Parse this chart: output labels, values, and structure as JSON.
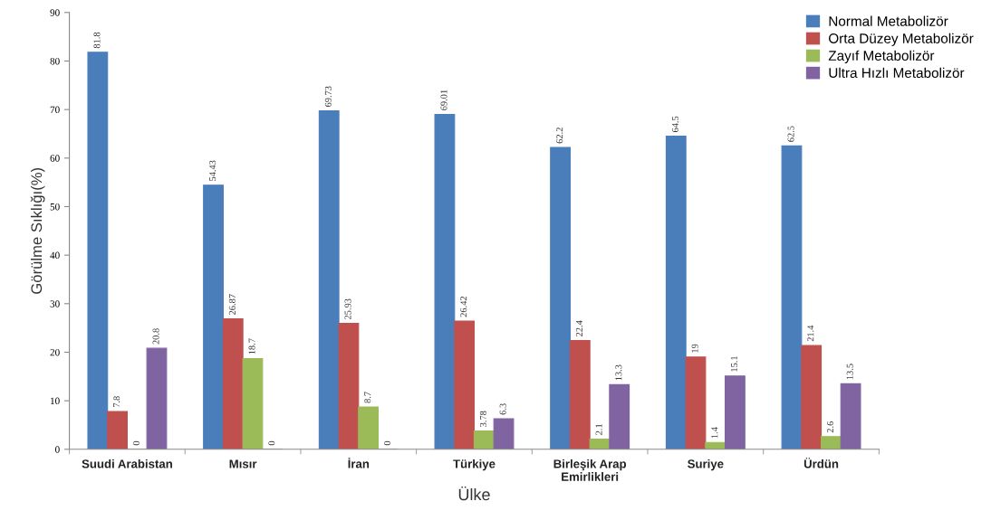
{
  "chart_data": {
    "type": "bar",
    "xlabel": "Ülke",
    "ylabel": "Görülme Sıklığı(%)",
    "categories": [
      "Suudi Arabistan",
      "Mısır",
      "İran",
      "Türkiye",
      "Birleşik Arap\nEmirlikleri",
      "Suriye",
      "Ürdün"
    ],
    "series": [
      {
        "name": "Normal Metabolizör",
        "color": "#4a7ebb",
        "values": [
          81.8,
          54.43,
          69.73,
          69.01,
          62.2,
          64.5,
          62.5
        ]
      },
      {
        "name": "Orta Düzey Metabolizör",
        "color": "#c0504d",
        "values": [
          7.8,
          26.87,
          25.93,
          26.42,
          22.4,
          19,
          21.4
        ]
      },
      {
        "name": "Zayıf Metabolizör",
        "color": "#9bbb59",
        "values": [
          0,
          18.7,
          8.7,
          3.78,
          2.1,
          1.4,
          2.6
        ]
      },
      {
        "name": "Ultra Hızlı Metabolizör",
        "color": "#8064a2",
        "values": [
          20.8,
          0,
          0,
          6.3,
          13.3,
          15.1,
          13.5
        ]
      }
    ],
    "ylim": [
      0,
      90
    ],
    "yticks": [
      0,
      10,
      20,
      30,
      40,
      50,
      60,
      70,
      80,
      90
    ],
    "data_labels": true,
    "legend": "top right"
  }
}
